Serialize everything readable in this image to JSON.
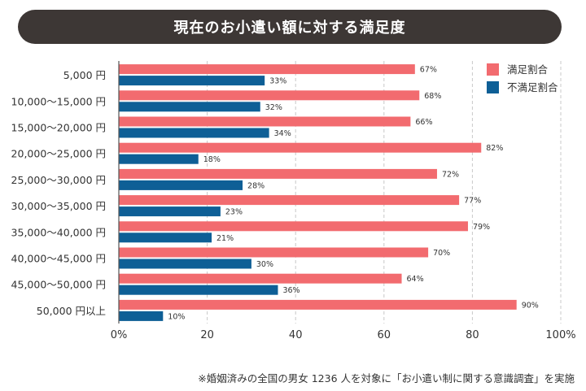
{
  "chart_data": {
    "type": "bar",
    "orientation": "horizontal",
    "title": "現在のお小遣い額に対する満足度",
    "categories": [
      "5,000 円",
      "10,000〜15,000 円",
      "15,000〜20,000 円",
      "20,000〜25,000 円",
      "25,000〜30,000 円",
      "30,000〜35,000 円",
      "35,000〜40,000 円",
      "40,000〜45,000 円",
      "45,000〜50,000 円",
      "50,000 円以上"
    ],
    "series": [
      {
        "name": "満足割合",
        "color": "#f26b6f",
        "values": [
          67,
          68,
          66,
          82,
          72,
          77,
          79,
          70,
          64,
          90
        ],
        "labels": [
          "67%",
          "68%",
          "66%",
          "82%",
          "72%",
          "77%",
          "79%",
          "70%",
          "64%",
          "90%"
        ]
      },
      {
        "name": "不満足割合",
        "color": "#0e5f96",
        "values": [
          33,
          32,
          34,
          18,
          28,
          23,
          21,
          30,
          36,
          10
        ],
        "labels": [
          "33%",
          "32%",
          "34%",
          "18%",
          "28%",
          "23%",
          "21%",
          "30%",
          "36%",
          "10%"
        ]
      }
    ],
    "xlim": [
      0,
      100
    ],
    "ticks": [
      0,
      20,
      40,
      60,
      80,
      100
    ],
    "tick_labels": [
      "0%",
      "20",
      "40",
      "60",
      "80",
      "100%"
    ],
    "grid": true,
    "legend": "top-right",
    "xlabel": "",
    "ylabel": ""
  },
  "footnote": "※婚姻済みの全国の男女 1236 人を対象に「お小遣い制に関する意識調査」を実施"
}
